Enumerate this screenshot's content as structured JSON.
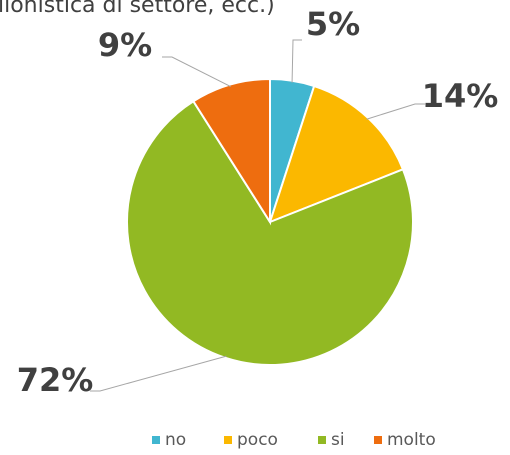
{
  "chart_data": {
    "type": "pie",
    "title": "lionistica di settore, ecc.)",
    "categories": [
      "no",
      "poco",
      "si",
      "molto"
    ],
    "values": [
      5,
      14,
      72,
      9
    ],
    "value_labels": [
      "5%",
      "14%",
      "72%",
      "9%"
    ],
    "colors": [
      "#41b6d0",
      "#fbb800",
      "#92b923",
      "#ee6d0f"
    ],
    "legend": "bottom"
  }
}
